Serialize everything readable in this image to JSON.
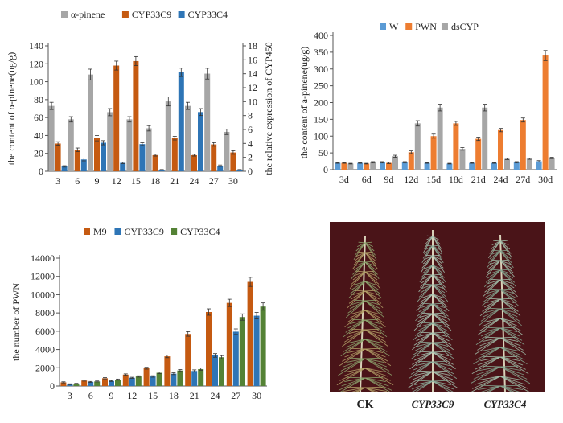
{
  "colors": {
    "gray": "#a6a6a6",
    "orange": "#c55a11",
    "blue": "#2e75b6",
    "light_blue": "#5b9bd5",
    "light_orange": "#ed7d31",
    "green": "#548235",
    "photo_bg": "#4a1418"
  },
  "chart_data": [
    {
      "type": "bar",
      "categories": [
        "3",
        "6",
        "9",
        "12",
        "15",
        "18",
        "21",
        "24",
        "27",
        "30"
      ],
      "ylabel": "the content of α-pinene(ug/g)",
      "y2label": "the relative expression of CYP450",
      "ylim": [
        0,
        140
      ],
      "yticks": [
        0,
        20,
        40,
        60,
        80,
        100,
        120,
        140
      ],
      "y2lim": [
        0,
        18
      ],
      "y2ticks": [
        0,
        2,
        4,
        6,
        8,
        10,
        12,
        14,
        16,
        18
      ],
      "legend_position": "top",
      "series": [
        {
          "name": "α-pinene",
          "axis": "left",
          "values": [
            73,
            58,
            108,
            66,
            58,
            48,
            78,
            73,
            109,
            44
          ],
          "errors": [
            4,
            3,
            6,
            4,
            3,
            3,
            5,
            4,
            6,
            3
          ]
        },
        {
          "name": "CYP33C9",
          "axis": "left",
          "values": [
            31,
            24,
            37,
            118,
            123,
            18,
            37,
            18,
            30,
            21
          ],
          "errors": [
            2,
            2,
            3,
            5,
            5,
            1,
            2,
            1,
            2,
            2
          ]
        },
        {
          "name": "CYP33C4",
          "axis": "right",
          "values": [
            0.7,
            1.7,
            4.1,
            1.2,
            3.9,
            0.2,
            14.2,
            8.5,
            0.8,
            0.2
          ],
          "errors": [
            0.1,
            0.2,
            0.3,
            0.1,
            0.2,
            0.05,
            0.6,
            0.5,
            0.1,
            0.05
          ]
        }
      ]
    },
    {
      "type": "bar",
      "categories": [
        "3d",
        "6d",
        "9d",
        "12d",
        "15d",
        "18d",
        "21d",
        "24d",
        "27d",
        "30d"
      ],
      "ylabel": "the content of a-pinene(ug/g)",
      "ylim": [
        0,
        400
      ],
      "yticks": [
        0,
        50,
        100,
        150,
        200,
        250,
        300,
        350,
        400
      ],
      "legend_position": "top",
      "series": [
        {
          "name": "W",
          "values": [
            20,
            20,
            22,
            22,
            20,
            18,
            20,
            20,
            22,
            25
          ],
          "errors": [
            1,
            1,
            2,
            2,
            1,
            1,
            1,
            1,
            2,
            2
          ]
        },
        {
          "name": "PWN",
          "values": [
            20,
            18,
            20,
            52,
            100,
            138,
            92,
            118,
            148,
            340
          ],
          "errors": [
            1,
            1,
            2,
            4,
            6,
            6,
            5,
            5,
            6,
            15
          ]
        },
        {
          "name": "dsCYP",
          "values": [
            18,
            22,
            40,
            138,
            185,
            62,
            185,
            32,
            33,
            35
          ],
          "errors": [
            1,
            2,
            3,
            8,
            10,
            4,
            10,
            2,
            2,
            2
          ]
        }
      ]
    },
    {
      "type": "bar",
      "categories": [
        "3",
        "6",
        "9",
        "12",
        "15",
        "18",
        "21",
        "24",
        "27",
        "30"
      ],
      "ylabel": "the number of PWN",
      "ylim": [
        0,
        14000
      ],
      "yticks": [
        0,
        2000,
        4000,
        6000,
        8000,
        10000,
        12000,
        14000
      ],
      "legend_position": "top",
      "series": [
        {
          "name": "M9",
          "values": [
            400,
            600,
            850,
            1250,
            1950,
            3250,
            5700,
            8100,
            9100,
            11400
          ],
          "errors": [
            60,
            60,
            70,
            80,
            100,
            150,
            250,
            350,
            400,
            500
          ]
        },
        {
          "name": "CYP33C9",
          "values": [
            200,
            450,
            550,
            900,
            1050,
            1350,
            1650,
            3350,
            5950,
            7700
          ],
          "errors": [
            40,
            50,
            50,
            60,
            80,
            100,
            120,
            200,
            300,
            350
          ]
        },
        {
          "name": "CYP33C4",
          "values": [
            250,
            500,
            700,
            1050,
            1450,
            1700,
            1850,
            3150,
            7550,
            8700
          ],
          "errors": [
            40,
            50,
            60,
            70,
            90,
            100,
            120,
            180,
            350,
            400
          ]
        }
      ]
    }
  ],
  "photo": {
    "labels": [
      "CK",
      "CYP33C9",
      "CYP33C4"
    ]
  }
}
